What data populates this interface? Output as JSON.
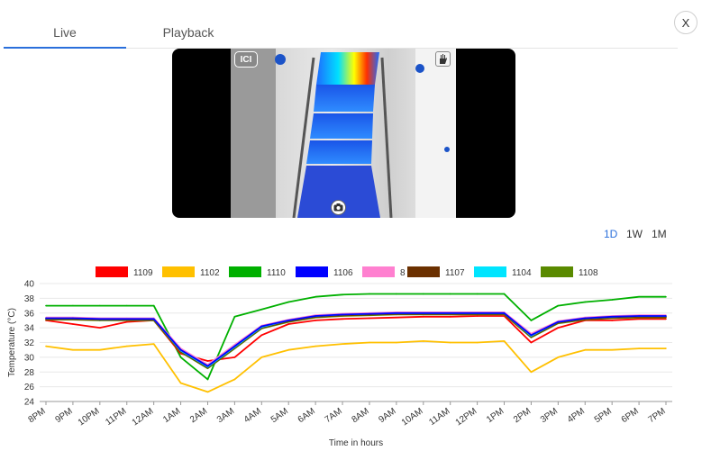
{
  "tabs": {
    "live": "Live",
    "playback": "Playback"
  },
  "close_label": "X",
  "camera": {
    "logo_text": "ICI"
  },
  "ranges": {
    "day": "1D",
    "week": "1W",
    "month": "1M"
  },
  "colors": {
    "accent": "#2a6fdb"
  },
  "chart_data": {
    "type": "line",
    "xlabel": "Time in hours",
    "ylabel": "Temperature (°C)",
    "ylim": [
      24,
      40
    ],
    "yticks": [
      24,
      26,
      28,
      30,
      32,
      34,
      36,
      38,
      40
    ],
    "categories": [
      "8PM",
      "9PM",
      "10PM",
      "11PM",
      "12AM",
      "1AM",
      "2AM",
      "3AM",
      "4AM",
      "5AM",
      "6AM",
      "7AM",
      "8AM",
      "9AM",
      "10AM",
      "11AM",
      "12PM",
      "1PM",
      "2PM",
      "3PM",
      "4PM",
      "5PM",
      "6PM",
      "7PM"
    ],
    "legend_position": "top",
    "series": [
      {
        "name": "1109",
        "color": "#ff0000",
        "values": [
          35,
          34.5,
          34,
          34.8,
          35,
          30.5,
          29.5,
          30,
          33,
          34.5,
          35,
          35.2,
          35.3,
          35.4,
          35.5,
          35.5,
          35.6,
          35.6,
          32,
          34,
          35,
          35,
          35.2,
          35.2
        ]
      },
      {
        "name": "1102",
        "color": "#ffc000",
        "values": [
          31.5,
          31,
          31,
          31.5,
          31.8,
          26.5,
          25.3,
          27,
          30,
          31,
          31.5,
          31.8,
          32,
          32,
          32.2,
          32,
          32,
          32.2,
          28,
          30,
          31,
          31,
          31.2,
          31.2
        ]
      },
      {
        "name": "1110",
        "color": "#00b000",
        "values": [
          37,
          37,
          37,
          37,
          37,
          30,
          27,
          35.5,
          36.5,
          37.5,
          38.2,
          38.5,
          38.6,
          38.6,
          38.6,
          38.6,
          38.6,
          38.6,
          35,
          37,
          37.5,
          37.8,
          38.2,
          38.2
        ]
      },
      {
        "name": "1106",
        "color": "#0000ff",
        "values": [
          35.3,
          35.3,
          35.2,
          35.2,
          35.2,
          31,
          28.8,
          31.5,
          34.2,
          35,
          35.6,
          35.8,
          35.9,
          36,
          36,
          36,
          36,
          36,
          33,
          34.8,
          35.3,
          35.5,
          35.6,
          35.6
        ]
      },
      {
        "name": "8",
        "color": "#ff80d0",
        "values": [
          35.4,
          35.4,
          35.3,
          35.3,
          35.3,
          31.2,
          29,
          31.7,
          34.3,
          35.1,
          35.7,
          35.9,
          36,
          36.1,
          36.1,
          36.1,
          36.1,
          36.1,
          33.2,
          34.9,
          35.4,
          35.6,
          35.7,
          35.7
        ]
      },
      {
        "name": "1107",
        "color": "#6b3000",
        "values": [
          35.2,
          35.2,
          35.1,
          35.1,
          35.1,
          30.8,
          28.6,
          31.3,
          34,
          34.9,
          35.5,
          35.7,
          35.8,
          35.9,
          35.9,
          35.9,
          35.9,
          35.9,
          32.8,
          34.7,
          35.2,
          35.4,
          35.5,
          35.5
        ]
      },
      {
        "name": "1104",
        "color": "#00e5ff",
        "values": [
          35.3,
          35.3,
          35.2,
          35.2,
          35.2,
          30.9,
          28.7,
          31.4,
          34.1,
          35,
          35.6,
          35.8,
          35.9,
          36,
          36,
          36,
          36,
          36,
          32.9,
          34.8,
          35.3,
          35.5,
          35.6,
          35.6
        ]
      },
      {
        "name": "1108",
        "color": "#5a8a00",
        "values": [
          35.1,
          35.1,
          35,
          35,
          35,
          30.7,
          28.5,
          31.2,
          33.9,
          34.8,
          35.4,
          35.6,
          35.7,
          35.8,
          35.8,
          35.8,
          35.8,
          35.8,
          32.7,
          34.6,
          35.1,
          35.3,
          35.4,
          35.4
        ]
      }
    ]
  }
}
